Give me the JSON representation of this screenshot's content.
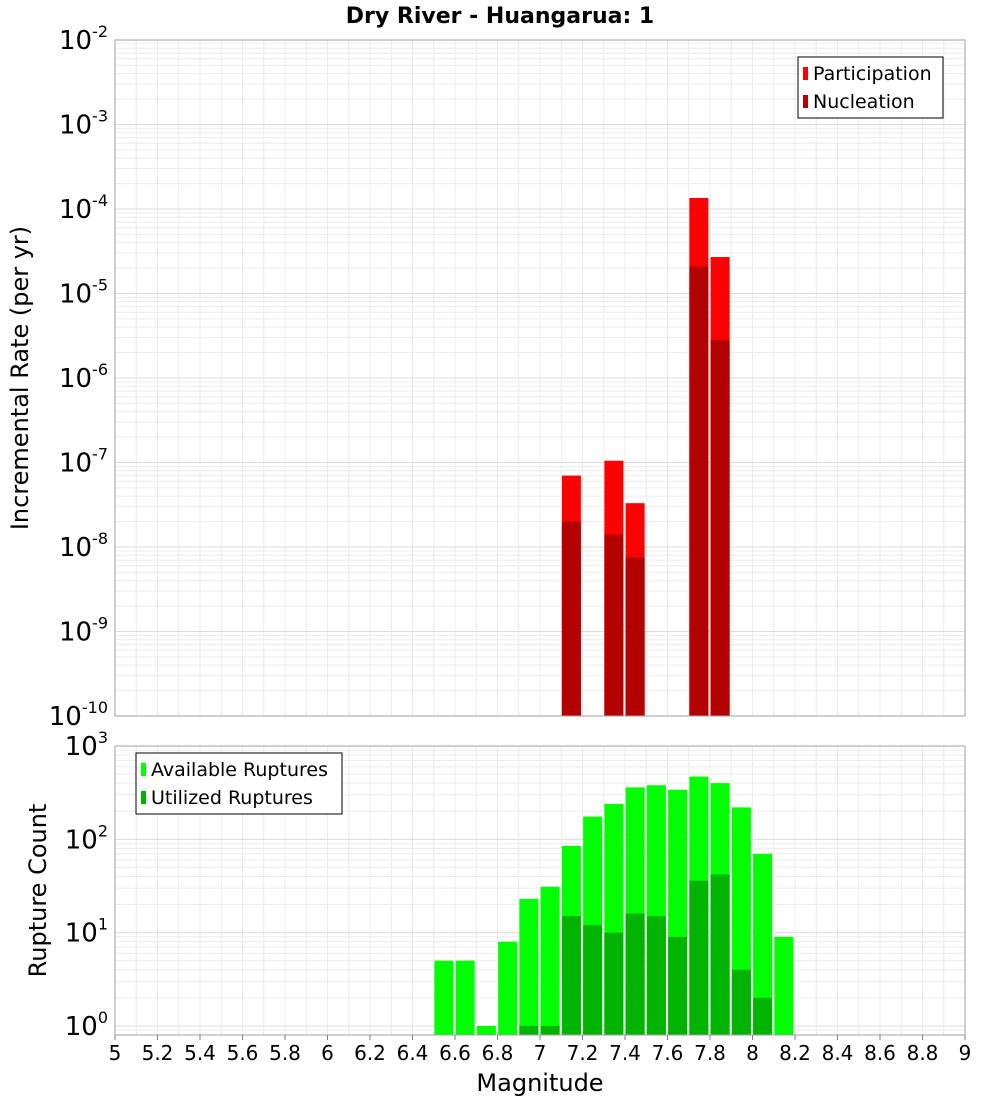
{
  "chart_data": [
    {
      "type": "bar",
      "title": "Dry River - Huangarua: 1",
      "ylabel": "Incremental Rate (per yr)",
      "xlabel": "",
      "yscale": "log",
      "ylim": [
        1e-10,
        0.01
      ],
      "xlim": [
        5,
        9
      ],
      "ytick_labels": [
        {
          "base": "10",
          "exp": "-10"
        },
        {
          "base": "10",
          "exp": "-9"
        },
        {
          "base": "10",
          "exp": "-8"
        },
        {
          "base": "10",
          "exp": "-7"
        },
        {
          "base": "10",
          "exp": "-6"
        },
        {
          "base": "10",
          "exp": "-5"
        },
        {
          "base": "10",
          "exp": "-4"
        },
        {
          "base": "10",
          "exp": "-3"
        },
        {
          "base": "10",
          "exp": "-2"
        }
      ],
      "legend": {
        "position": "top-right",
        "entries": [
          "Participation",
          "Nucleation"
        ]
      },
      "grid": true,
      "series": [
        {
          "name": "Participation",
          "color": "#ff0000",
          "x": [
            7.15,
            7.35,
            7.45,
            7.75,
            7.85
          ],
          "values": [
            7e-08,
            1.05e-07,
            3.3e-08,
            0.000135,
            2.7e-05
          ]
        },
        {
          "name": "Nucleation",
          "color": "#b30000",
          "x": [
            7.15,
            7.35,
            7.45,
            7.75,
            7.85
          ],
          "values": [
            2e-08,
            1.4e-08,
            7.5e-09,
            2.1e-05,
            2.8e-06
          ]
        }
      ]
    },
    {
      "type": "bar",
      "title": "",
      "ylabel": "Rupture Count",
      "xlabel": "Magnitude",
      "yscale": "log",
      "ylim": [
        0.8,
        1000
      ],
      "xlim": [
        5,
        9
      ],
      "ytick_labels": [
        {
          "base": "10",
          "exp": "0"
        },
        {
          "base": "10",
          "exp": "1"
        },
        {
          "base": "10",
          "exp": "2"
        },
        {
          "base": "10",
          "exp": "3"
        }
      ],
      "xtick_labels": [
        "5",
        "5.2",
        "5.4",
        "5.6",
        "5.8",
        "6",
        "6.2",
        "6.4",
        "6.6",
        "6.8",
        "7",
        "7.2",
        "7.4",
        "7.6",
        "7.8",
        "8",
        "8.2",
        "8.4",
        "8.6",
        "8.8",
        "9"
      ],
      "legend": {
        "position": "top-left",
        "entries": [
          "Available Ruptures",
          "Utilized Ruptures"
        ]
      },
      "grid": true,
      "series": [
        {
          "name": "Available Ruptures",
          "color": "#00ff00",
          "x": [
            6.55,
            6.65,
            6.75,
            6.85,
            6.95,
            7.05,
            7.15,
            7.25,
            7.35,
            7.45,
            7.55,
            7.65,
            7.75,
            7.85,
            7.95,
            8.05,
            8.15
          ],
          "values": [
            5,
            5,
            1,
            8,
            23,
            31,
            85,
            175,
            240,
            360,
            380,
            340,
            470,
            400,
            220,
            70,
            9
          ]
        },
        {
          "name": "Utilized Ruptures",
          "color": "#00b300",
          "x": [
            6.95,
            7.05,
            7.15,
            7.25,
            7.35,
            7.45,
            7.55,
            7.65,
            7.75,
            7.85,
            7.95,
            8.05
          ],
          "values": [
            1,
            1,
            15,
            12,
            10,
            16,
            15,
            9,
            36,
            42,
            4,
            2
          ]
        }
      ]
    }
  ]
}
